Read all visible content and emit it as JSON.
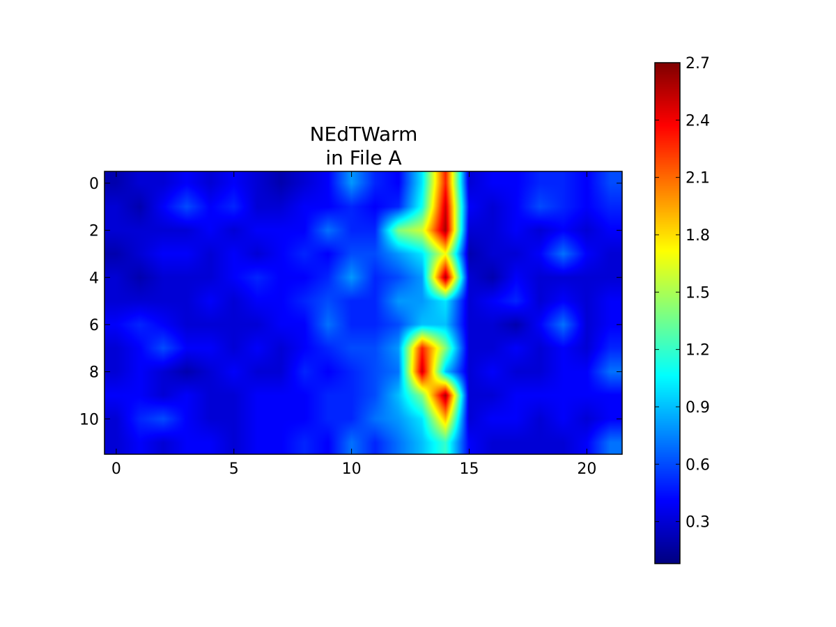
{
  "chart_data": {
    "type": "heatmap",
    "title": [
      "NEdTWarm",
      "in File A"
    ],
    "xlabel": "",
    "ylabel": "",
    "grid": false,
    "colormap": "jet",
    "interpolation": "bilinear",
    "x_range": [
      -0.5,
      21.5
    ],
    "y_range": [
      -0.5,
      11.5
    ],
    "y_inverted": true,
    "xticks": [
      0,
      5,
      10,
      15,
      20
    ],
    "yticks": [
      0,
      2,
      4,
      6,
      8,
      10
    ],
    "colorbar": {
      "min": 0.08,
      "max": 2.7,
      "ticks": [
        0.3,
        0.6,
        0.9,
        1.2,
        1.5,
        1.8,
        2.1,
        2.4,
        2.7
      ],
      "tick_labels": [
        "0.3",
        "0.6",
        "0.9",
        "1.2",
        "1.5",
        "1.8",
        "2.1",
        "2.4",
        "2.7"
      ]
    },
    "columns": 22,
    "rows": 12,
    "values": [
      [
        0.2,
        0.3,
        0.3,
        0.4,
        0.3,
        0.4,
        0.3,
        0.2,
        0.3,
        0.4,
        0.8,
        0.5,
        0.4,
        1.0,
        2.3,
        0.3,
        0.4,
        0.4,
        0.5,
        0.5,
        0.4,
        0.6
      ],
      [
        0.3,
        0.2,
        0.4,
        0.6,
        0.4,
        0.5,
        0.3,
        0.3,
        0.4,
        0.4,
        0.5,
        0.4,
        0.5,
        1.1,
        2.5,
        0.4,
        0.3,
        0.4,
        0.6,
        0.5,
        0.4,
        0.5
      ],
      [
        0.3,
        0.3,
        0.3,
        0.3,
        0.4,
        0.3,
        0.4,
        0.4,
        0.4,
        0.7,
        0.5,
        0.5,
        1.4,
        1.6,
        2.6,
        0.3,
        0.3,
        0.4,
        0.3,
        0.4,
        0.3,
        0.4
      ],
      [
        0.2,
        0.3,
        0.4,
        0.4,
        0.3,
        0.4,
        0.3,
        0.4,
        0.5,
        0.4,
        0.6,
        0.6,
        0.8,
        1.0,
        1.7,
        0.2,
        0.3,
        0.3,
        0.4,
        0.7,
        0.4,
        0.3
      ],
      [
        0.3,
        0.2,
        0.3,
        0.3,
        0.3,
        0.4,
        0.5,
        0.4,
        0.4,
        0.5,
        0.8,
        0.5,
        0.6,
        0.8,
        2.6,
        0.3,
        0.2,
        0.4,
        0.3,
        0.3,
        0.3,
        0.3
      ],
      [
        0.3,
        0.3,
        0.3,
        0.3,
        0.4,
        0.3,
        0.4,
        0.4,
        0.5,
        0.6,
        0.5,
        0.5,
        0.8,
        0.8,
        1.0,
        0.3,
        0.4,
        0.5,
        0.3,
        0.4,
        0.3,
        0.4
      ],
      [
        0.4,
        0.5,
        0.4,
        0.3,
        0.3,
        0.3,
        0.3,
        0.4,
        0.4,
        0.7,
        0.5,
        0.5,
        0.6,
        0.9,
        0.9,
        0.3,
        0.3,
        0.2,
        0.4,
        0.7,
        0.3,
        0.4
      ],
      [
        0.3,
        0.4,
        0.6,
        0.4,
        0.4,
        0.3,
        0.4,
        0.3,
        0.4,
        0.5,
        0.6,
        0.6,
        0.8,
        2.3,
        1.4,
        0.3,
        0.3,
        0.4,
        0.3,
        0.4,
        0.3,
        0.5
      ],
      [
        0.3,
        0.4,
        0.3,
        0.2,
        0.3,
        0.4,
        0.3,
        0.3,
        0.5,
        0.4,
        0.5,
        0.6,
        0.7,
        2.5,
        0.9,
        0.3,
        0.4,
        0.3,
        0.3,
        0.4,
        0.4,
        0.7
      ],
      [
        0.4,
        0.4,
        0.3,
        0.4,
        0.3,
        0.3,
        0.4,
        0.4,
        0.4,
        0.5,
        0.5,
        0.6,
        0.9,
        1.4,
        2.6,
        0.3,
        0.3,
        0.4,
        0.4,
        0.4,
        0.4,
        0.4
      ],
      [
        0.3,
        0.5,
        0.6,
        0.4,
        0.3,
        0.3,
        0.4,
        0.4,
        0.4,
        0.5,
        0.5,
        0.7,
        0.8,
        1.0,
        1.9,
        0.3,
        0.4,
        0.4,
        0.3,
        0.4,
        0.3,
        0.4
      ],
      [
        0.3,
        0.4,
        0.3,
        0.4,
        0.4,
        0.3,
        0.4,
        0.4,
        0.5,
        0.4,
        0.7,
        0.5,
        0.7,
        0.9,
        1.2,
        0.4,
        0.3,
        0.3,
        0.3,
        0.3,
        0.4,
        0.7
      ]
    ]
  }
}
